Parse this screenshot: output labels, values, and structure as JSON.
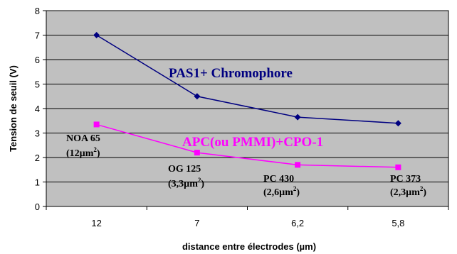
{
  "chart_data": {
    "type": "line",
    "categories": [
      "12",
      "7",
      "6,2",
      "5,8"
    ],
    "ylim": [
      0,
      8
    ],
    "yticks": [
      "0",
      "1",
      "2",
      "3",
      "4",
      "5",
      "6",
      "7",
      "8"
    ],
    "xlabel": "distance entre électrodes (µm)",
    "ylabel": "Tension de seuil (V)",
    "plot_background": "#c0c0c0",
    "grid": "horizontal",
    "series": [
      {
        "name": "PAS1+ Chromophore",
        "color": "#000080",
        "marker": "diamond",
        "values": [
          7.0,
          4.5,
          3.65,
          3.4
        ]
      },
      {
        "name": "APC(ou PMMI)+CPO-1",
        "color": "#ff00ff",
        "marker": "square",
        "values": [
          3.35,
          2.2,
          1.7,
          1.6
        ]
      }
    ],
    "annotations": [
      {
        "name": "NOA 65",
        "detail_prefix": "(12µm",
        "sup": "2",
        "detail_suffix": ")"
      },
      {
        "name": "OG 125",
        "detail_prefix": "(3,3µm",
        "sup": "2",
        "detail_suffix": ")"
      },
      {
        "name": "PC 430",
        "detail_prefix": "(2,6µm",
        "sup": "2",
        "detail_suffix": ")"
      },
      {
        "name": "PC 373",
        "detail_prefix": "(2,3µm",
        "sup": "2",
        "detail_suffix": ")"
      }
    ]
  }
}
